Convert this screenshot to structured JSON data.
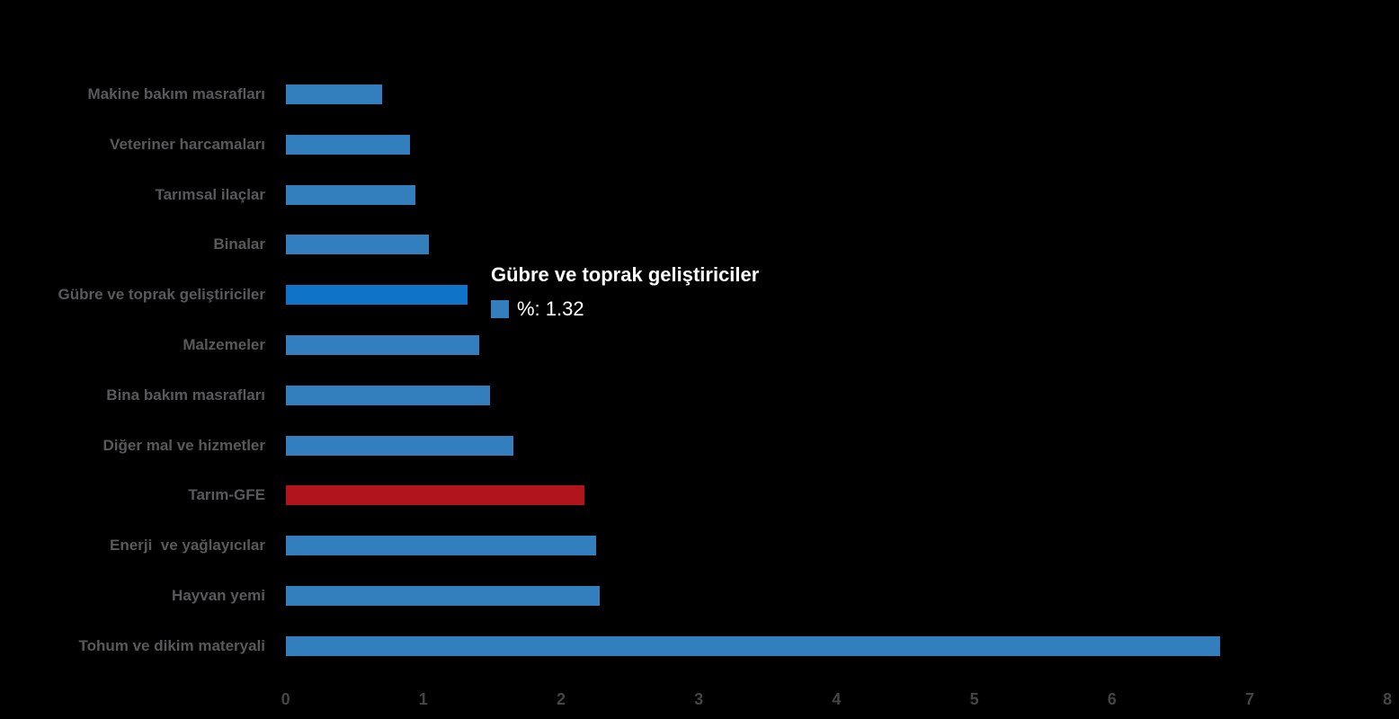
{
  "chart_data": {
    "type": "bar",
    "orientation": "horizontal",
    "title": "",
    "xlabel": "",
    "ylabel": "",
    "categories": [
      "Makine bakım masrafları",
      "Veteriner harcamaları",
      "Tarımsal ilaçlar",
      "Binalar",
      "Gübre ve toprak geliştiriciler",
      "Malzemeler",
      "Bina bakım masrafları",
      "Diğer mal ve hizmetler",
      "Tarım-GFE",
      "Enerji  ve yağlayıcılar",
      "Hayvan yemi",
      "Tohum ve dikim materyali"
    ],
    "values": [
      0.7,
      0.9,
      0.94,
      1.04,
      1.32,
      1.4,
      1.48,
      1.65,
      2.17,
      2.25,
      2.28,
      6.78
    ],
    "series_name": "%",
    "xlim": [
      0,
      8
    ],
    "x_ticks": [
      "0",
      "1",
      "2",
      "3",
      "4",
      "5",
      "6",
      "7",
      "8"
    ],
    "grid": false,
    "legend_position": "none",
    "colors": {
      "bar": "#337FBD",
      "highlight": "#0F73C8",
      "accent": "#B1141B",
      "background": "#000000",
      "label": "#58595b",
      "axis_label": "#454545"
    },
    "highlight_index": 4,
    "accent_index": 8
  },
  "tooltip": {
    "title": "Gübre ve toprak geliştiriciler",
    "value_label": "%: 1.32",
    "swatch_color": "#337FBD"
  }
}
